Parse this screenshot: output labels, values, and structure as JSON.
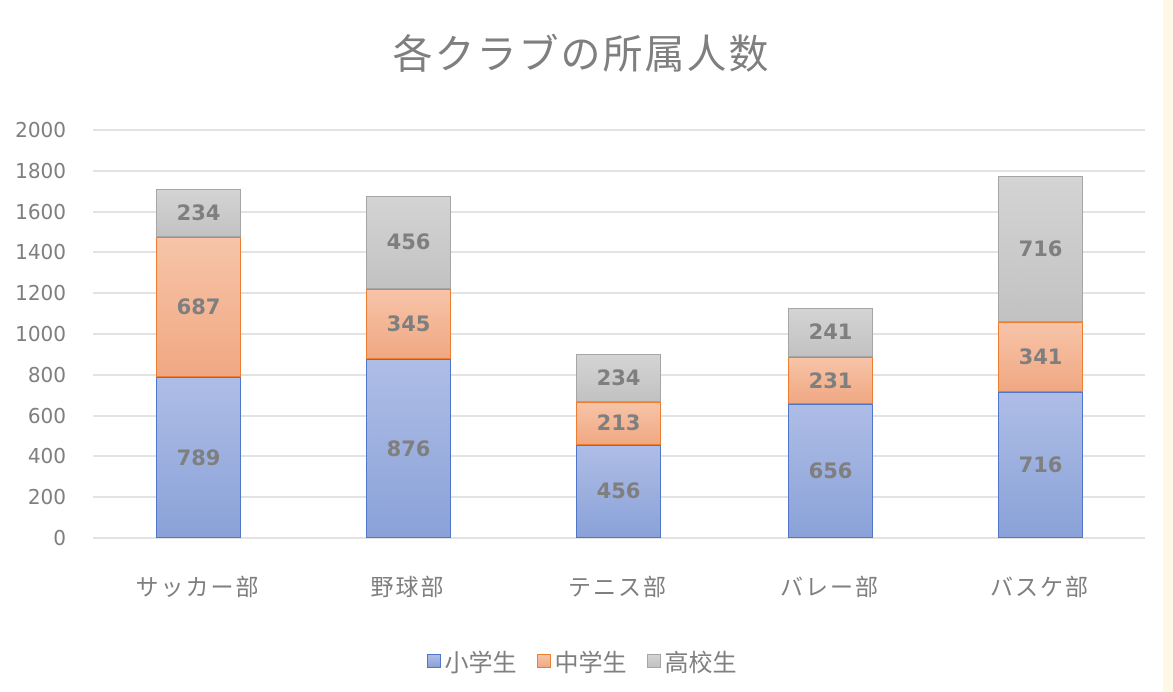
{
  "chart_data": {
    "type": "bar",
    "stacked": true,
    "title": "各クラブの所属人数",
    "categories": [
      "サッカー部",
      "野球部",
      "テニス部",
      "バレー部",
      "バスケ部"
    ],
    "series": [
      {
        "name": "小学生",
        "color": "#4472c4",
        "values": [
          789,
          876,
          456,
          656,
          716
        ]
      },
      {
        "name": "中学生",
        "color": "#ed7d31",
        "values": [
          687,
          345,
          213,
          231,
          341
        ]
      },
      {
        "name": "高校生",
        "color": "#a5a5a5",
        "values": [
          234,
          456,
          234,
          241,
          716
        ]
      }
    ],
    "xlabel": "",
    "ylabel": "",
    "ylim": [
      0,
      2000
    ],
    "yticks": [
      0,
      200,
      400,
      600,
      800,
      1000,
      1200,
      1400,
      1600,
      1800,
      2000
    ],
    "grid": true,
    "legend_position": "bottom",
    "data_labels": true
  },
  "chart": {
    "title": "各クラブの所属人数",
    "yticks": [
      "2000",
      "1800",
      "1600",
      "1400",
      "1200",
      "1000",
      "800",
      "600",
      "400",
      "200",
      "0"
    ],
    "categories": [
      "サッカー部",
      "野球部",
      "テニス部",
      "バレー部",
      "バスケ部"
    ],
    "legend": [
      "小学生",
      "中学生",
      "高校生"
    ]
  }
}
